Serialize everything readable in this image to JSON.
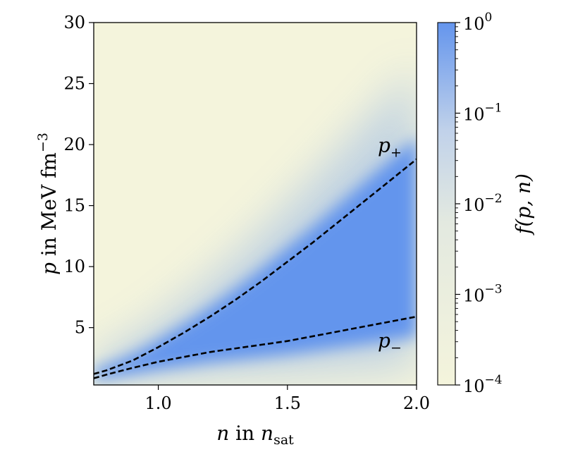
{
  "chart_data": {
    "type": "heatmap",
    "xlabel": {
      "var": "n",
      "mid": " in ",
      "unit": "n",
      "unit_sub": "sat"
    },
    "ylabel": {
      "var": "p",
      "text": " in MeV fm",
      "exp": "−3"
    },
    "xlim": [
      0.75,
      2.0
    ],
    "ylim": [
      0.3,
      30
    ],
    "x_ticks": [
      {
        "value": 1.0,
        "label": "1.0"
      },
      {
        "value": 1.5,
        "label": "1.5"
      },
      {
        "value": 2.0,
        "label": "2.0"
      }
    ],
    "y_ticks": [
      {
        "value": 5,
        "label": "5"
      },
      {
        "value": 10,
        "label": "10"
      },
      {
        "value": 15,
        "label": "15"
      },
      {
        "value": 20,
        "label": "20"
      },
      {
        "value": 25,
        "label": "25"
      },
      {
        "value": 30,
        "label": "30"
      }
    ],
    "colorbar": {
      "label": "f(p, n)",
      "scale": "log",
      "range": [
        0.0001,
        1
      ],
      "low_color": "#f4f4dc",
      "high_color": "#6495ed",
      "ticks": [
        {
          "value": 1,
          "base": "10",
          "exp": "0"
        },
        {
          "value": 0.1,
          "base": "10",
          "exp": "−1"
        },
        {
          "value": 0.01,
          "base": "10",
          "exp": "−2"
        },
        {
          "value": 0.001,
          "base": "10",
          "exp": "−3"
        },
        {
          "value": 0.0001,
          "base": "10",
          "exp": "−4"
        }
      ]
    },
    "curves": [
      {
        "name": "p+",
        "label_base": "p",
        "label_sub": "+",
        "style": "dashed",
        "points": [
          [
            0.75,
            1.2
          ],
          [
            0.8,
            1.5
          ],
          [
            0.9,
            2.3
          ],
          [
            1.0,
            3.4
          ],
          [
            1.1,
            4.6
          ],
          [
            1.2,
            5.9
          ],
          [
            1.3,
            7.3
          ],
          [
            1.4,
            8.8
          ],
          [
            1.5,
            10.4
          ],
          [
            1.6,
            12.0
          ],
          [
            1.7,
            13.7
          ],
          [
            1.8,
            15.4
          ],
          [
            1.9,
            17.1
          ],
          [
            2.0,
            18.8
          ]
        ]
      },
      {
        "name": "p-",
        "label_base": "p",
        "label_sub": "−",
        "style": "dashed",
        "points": [
          [
            0.75,
            0.85
          ],
          [
            0.8,
            1.15
          ],
          [
            0.9,
            1.7
          ],
          [
            1.0,
            2.2
          ],
          [
            1.1,
            2.6
          ],
          [
            1.2,
            3.0
          ],
          [
            1.3,
            3.3
          ],
          [
            1.4,
            3.6
          ],
          [
            1.5,
            3.9
          ],
          [
            1.6,
            4.3
          ],
          [
            1.7,
            4.7
          ],
          [
            1.8,
            5.1
          ],
          [
            1.9,
            5.5
          ],
          [
            2.0,
            5.9
          ]
        ]
      }
    ]
  }
}
